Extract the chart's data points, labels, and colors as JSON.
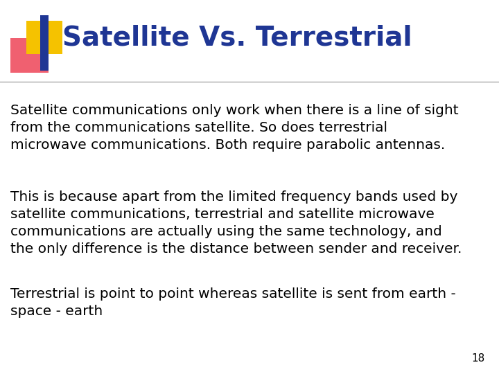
{
  "title": "Satellite Vs. Terrestrial",
  "title_color": "#1F3694",
  "title_fontsize": 28,
  "body_color": "#000000",
  "body_fontsize": 14.5,
  "background_color": "#FFFFFF",
  "page_number": "18",
  "paragraphs": [
    "Satellite communications only work when there is a line of sight\nfrom the communications satellite. So does terrestrial\nmicrowave communications. Both require parabolic antennas.",
    "This is because apart from the limited frequency bands used by\nsatellite communications, terrestrial and satellite microwave\ncommunications are actually using the same technology, and\nthe only difference is the distance between sender and receiver.",
    "Terrestrial is point to point whereas satellite is sent from earth -\nspace - earth"
  ],
  "divider_color": "#AAAAAA",
  "divider_linewidth": 1.0,
  "yellow_color": "#F5C200",
  "pink_color": "#F06070",
  "blue_color": "#1F3694"
}
